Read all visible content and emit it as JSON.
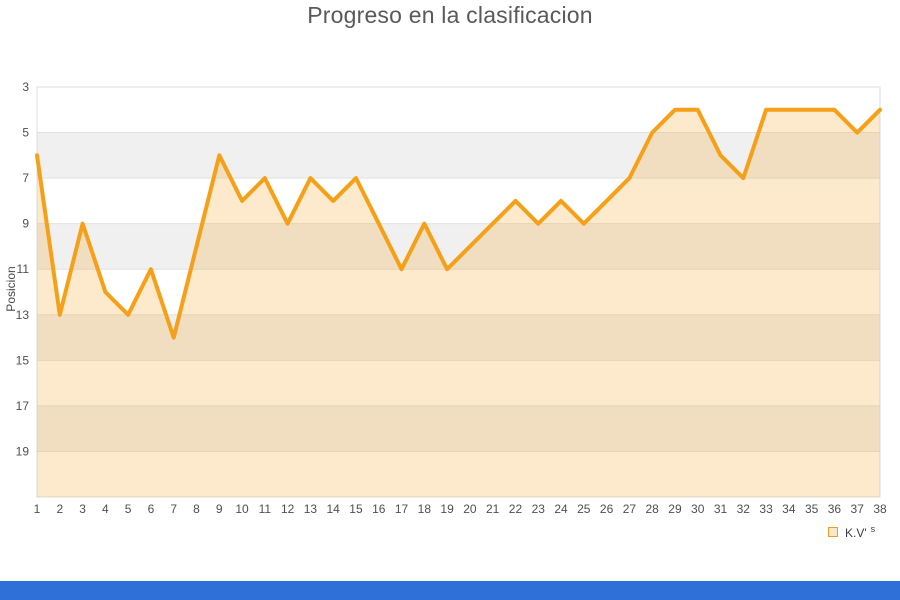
{
  "title": "Progreso en la clasificacion",
  "legend": {
    "label": "K.V'",
    "suffix": "s"
  },
  "colors": {
    "line": "#f5a018",
    "fill": "rgba(246,161,23,0.22)",
    "band_light": "#ffffff",
    "band_dark": "#f0f0f0",
    "gridline": "#e2e2e2",
    "plot_border": "#dddddd",
    "tick_text": "#4d4f52",
    "title_text": "#58595b",
    "bottom_bar": "#2e6fd8"
  },
  "chart_data": {
    "type": "area",
    "title": "Progreso en la clasificacion",
    "xlabel": "",
    "ylabel": "Posicion",
    "x": [
      1,
      2,
      3,
      4,
      5,
      6,
      7,
      8,
      9,
      10,
      11,
      12,
      13,
      14,
      15,
      16,
      17,
      18,
      19,
      20,
      21,
      22,
      23,
      24,
      25,
      26,
      27,
      28,
      29,
      30,
      31,
      32,
      33,
      34,
      35,
      36,
      37,
      38
    ],
    "series": [
      {
        "name": "K.V' s",
        "values": [
          6,
          13,
          9,
          12,
          13,
          11,
          14,
          10,
          6,
          8,
          7,
          9,
          7,
          8,
          7,
          9,
          11,
          9,
          11,
          10,
          9,
          8,
          9,
          8,
          9,
          8,
          7,
          5,
          4,
          4,
          6,
          7,
          4,
          4,
          4,
          4,
          5,
          4
        ]
      }
    ],
    "yticks": [
      3,
      5,
      7,
      9,
      11,
      13,
      15,
      17,
      19
    ],
    "ylim": [
      3,
      21
    ],
    "y_inverted": true,
    "grid": true,
    "legend_position": "bottom-right",
    "band_fill": "alternating-horizontal"
  }
}
